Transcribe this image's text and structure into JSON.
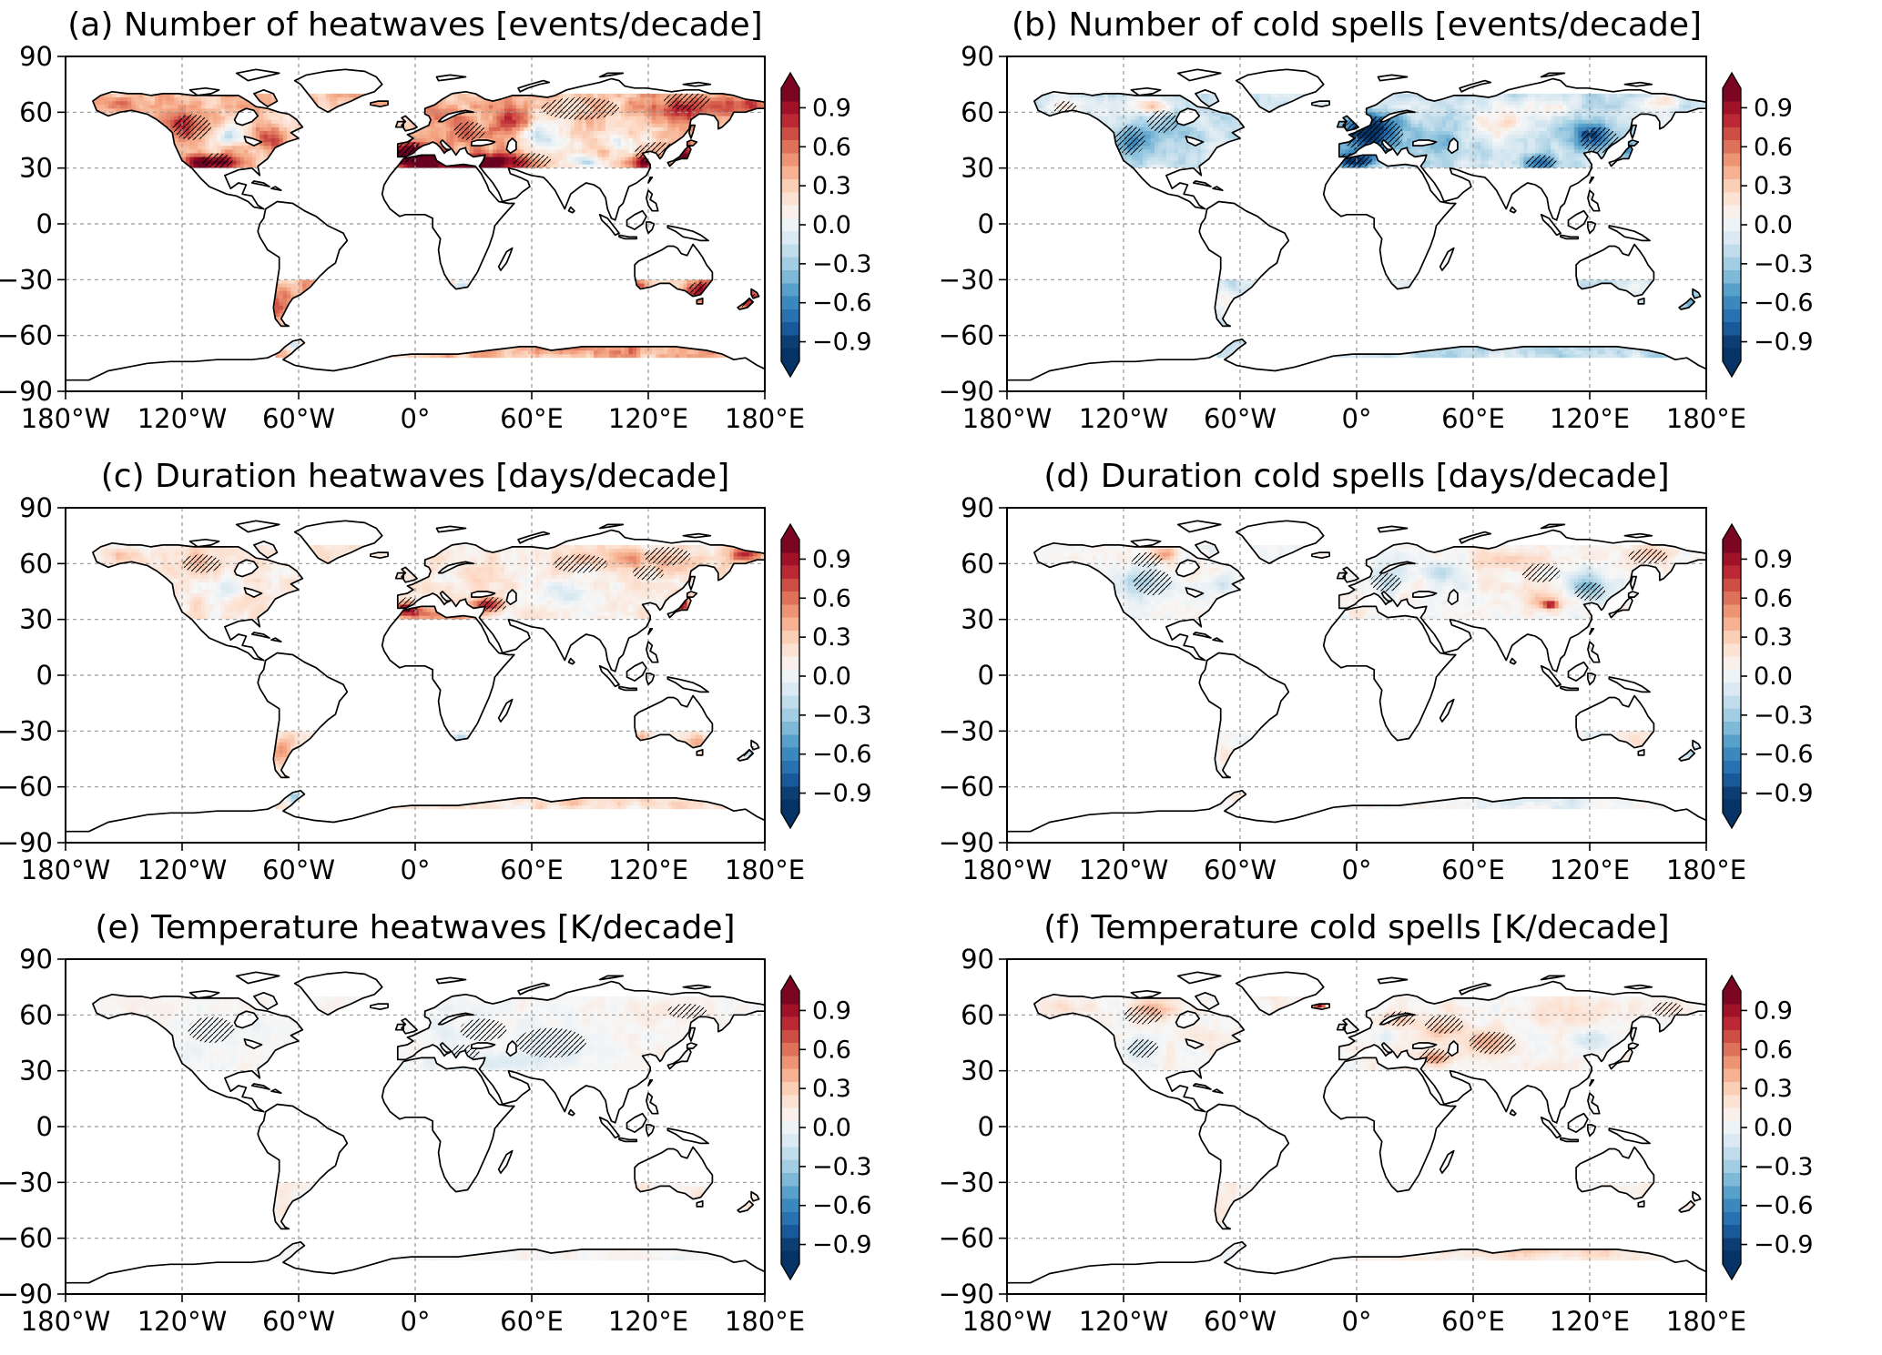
{
  "figure": {
    "background": "#ffffff",
    "panels": [
      {
        "id": "a",
        "title": "(a) Number of heatwaves [events/decade]"
      },
      {
        "id": "b",
        "title": "(b) Number of cold spells [events/decade]"
      },
      {
        "id": "c",
        "title": "(c) Duration heatwaves [days/decade]"
      },
      {
        "id": "d",
        "title": "(d) Duration cold spells [days/decade]"
      },
      {
        "id": "e",
        "title": "(e) Temperature heatwaves [K/decade]"
      },
      {
        "id": "f",
        "title": "(f) Temperature cold spells [K/decade]"
      }
    ],
    "x_tick_labels": [
      "180°W",
      "120°W",
      "60°W",
      "0°",
      "60°E",
      "120°E",
      "180°E"
    ],
    "x_tick_values": [
      -180,
      -120,
      -60,
      0,
      60,
      120,
      180
    ],
    "y_tick_labels": [
      "90",
      "60",
      "30",
      "0",
      "−30",
      "−60",
      "−90"
    ],
    "y_tick_values": [
      90,
      60,
      30,
      0,
      -30,
      -60,
      -90
    ],
    "gridline_lons": [
      -120,
      -60,
      0,
      60,
      120
    ],
    "gridline_lats": [
      60,
      30,
      0,
      -30,
      -60
    ],
    "colorbar": {
      "tick_labels": [
        "0.9",
        "0.6",
        "0.3",
        "0.0",
        "−0.3",
        "−0.6",
        "−0.9"
      ],
      "tick_values": [
        0.9,
        0.6,
        0.3,
        0.0,
        -0.3,
        -0.6,
        -0.9
      ],
      "vmin": -1.05,
      "vmax": 1.05,
      "colormap": "RdBu_r",
      "extend": "both",
      "rdbu_colors": [
        "#67001f",
        "#b2182b",
        "#d6604d",
        "#f4a582",
        "#fddbc7",
        "#f7f7f7",
        "#d1e5f0",
        "#92c5de",
        "#4393c3",
        "#2166ac",
        "#053061"
      ]
    },
    "coastline_color": "#000000",
    "gridline_color": "#999999"
  },
  "chart_data": [
    {
      "panel": "a",
      "type": "map_heatmap",
      "title": "(a) Number of heatwaves [events/decade]",
      "variable": "heatwave_frequency_trend",
      "units": "events/decade",
      "projection": "equirectangular",
      "lon_range": [
        -180,
        180
      ],
      "lat_range": [
        -90,
        90
      ],
      "grid_resolution_deg": 2,
      "coverage": "land 30N-70N plus southern South America, South Africa, southern Australia, New Zealand, coastal Antarctica",
      "colormap": "RdBu_r",
      "value_range": [
        -1.05,
        1.05
      ],
      "colorbar_ticks": [
        0.9,
        0.6,
        0.3,
        0.0,
        -0.3,
        -0.6,
        -0.9
      ],
      "base_value": 0.3,
      "noise_amplitude": 0.28,
      "regional_anomalies": [
        [
          -105,
          33,
          14,
          4,
          0.95
        ],
        [
          -118,
          52,
          10,
          8,
          0.5
        ],
        [
          -95,
          47,
          9,
          6,
          -0.45
        ],
        [
          -150,
          64,
          12,
          5,
          0.25
        ],
        [
          -75,
          45,
          8,
          6,
          0.35
        ],
        [
          -3,
          38,
          14,
          6,
          0.95
        ],
        [
          12,
          33,
          25,
          4,
          0.9
        ],
        [
          25,
          48,
          10,
          6,
          0.5
        ],
        [
          42,
          33,
          14,
          5,
          0.85
        ],
        [
          15,
          60,
          10,
          6,
          0.3
        ],
        [
          48,
          55,
          12,
          8,
          0.4
        ],
        [
          70,
          47,
          16,
          8,
          -0.5
        ],
        [
          88,
          33,
          8,
          4,
          -0.6
        ],
        [
          105,
          44,
          12,
          7,
          -0.3
        ],
        [
          118,
          33,
          10,
          4,
          0.7
        ],
        [
          135,
          62,
          20,
          7,
          0.5
        ],
        [
          170,
          64,
          10,
          5,
          0.5
        ],
        [
          138,
          37,
          5,
          6,
          0.7
        ],
        [
          -68,
          -42,
          7,
          10,
          0.35
        ],
        [
          24,
          -33,
          6,
          3,
          -0.45
        ],
        [
          146,
          -35,
          8,
          5,
          0.6
        ],
        [
          116,
          -33,
          5,
          3,
          0.35
        ],
        [
          173,
          -41,
          5,
          7,
          0.5
        ],
        [
          90,
          -67,
          60,
          4,
          0.18
        ],
        [
          -62,
          -65,
          5,
          4,
          -0.5
        ]
      ],
      "significance_hatch_zones": [
        [
          -115,
          52,
          10,
          7
        ],
        [
          -102,
          34,
          8,
          4
        ],
        [
          -5,
          39,
          10,
          6
        ],
        [
          28,
          50,
          8,
          5
        ],
        [
          85,
          62,
          20,
          6
        ],
        [
          125,
          38,
          12,
          6
        ],
        [
          140,
          66,
          12,
          5
        ],
        [
          60,
          34,
          10,
          4
        ],
        [
          147,
          -35,
          6,
          4
        ],
        [
          172,
          -42,
          4,
          6
        ]
      ]
    },
    {
      "panel": "b",
      "type": "map_heatmap",
      "title": "(b) Number of cold spells [events/decade]",
      "variable": "cold_spell_frequency_trend",
      "units": "events/decade",
      "projection": "equirectangular",
      "lon_range": [
        -180,
        180
      ],
      "lat_range": [
        -90,
        90
      ],
      "grid_resolution_deg": 2,
      "coverage": "land 30N-70N plus southern South America, South Africa, southern Australia, New Zealand, coastal Antarctica",
      "colormap": "RdBu_r",
      "value_range": [
        -1.05,
        1.05
      ],
      "colorbar_ticks": [
        0.9,
        0.6,
        0.3,
        0.0,
        -0.3,
        -0.6,
        -0.9
      ],
      "base_value": -0.2,
      "noise_amplitude": 0.22,
      "regional_anomalies": [
        [
          8,
          49,
          16,
          11,
          -0.9
        ],
        [
          -2,
          34,
          12,
          4,
          -0.85
        ],
        [
          -115,
          45,
          10,
          10,
          -0.45
        ],
        [
          -95,
          52,
          10,
          8,
          -0.25
        ],
        [
          -105,
          63,
          7,
          4,
          0.4
        ],
        [
          -150,
          63,
          10,
          5,
          0.3
        ],
        [
          75,
          55,
          15,
          8,
          0.35
        ],
        [
          100,
          62,
          15,
          6,
          0.3
        ],
        [
          122,
          48,
          12,
          8,
          -0.7
        ],
        [
          95,
          33,
          10,
          5,
          -0.5
        ],
        [
          140,
          40,
          6,
          6,
          -0.4
        ],
        [
          160,
          66,
          12,
          4,
          0.25
        ],
        [
          45,
          45,
          10,
          6,
          -0.3
        ],
        [
          -68,
          -42,
          6,
          10,
          0.2
        ],
        [
          146,
          -35,
          8,
          4,
          0.1
        ],
        [
          173,
          -41,
          4,
          6,
          -0.3
        ],
        [
          90,
          -67,
          60,
          4,
          -0.12
        ]
      ],
      "significance_hatch_zones": [
        [
          8,
          48,
          16,
          10
        ],
        [
          -2,
          34,
          10,
          4
        ],
        [
          -117,
          45,
          8,
          8
        ],
        [
          -100,
          55,
          8,
          6
        ],
        [
          125,
          45,
          10,
          7
        ],
        [
          95,
          33,
          8,
          4
        ],
        [
          -150,
          62,
          6,
          4
        ]
      ]
    },
    {
      "panel": "c",
      "type": "map_heatmap",
      "title": "(c) Duration heatwaves [days/decade]",
      "variable": "heatwave_duration_trend",
      "units": "days/decade",
      "projection": "equirectangular",
      "lon_range": [
        -180,
        180
      ],
      "lat_range": [
        -90,
        90
      ],
      "grid_resolution_deg": 2,
      "coverage": "land 30N-70N plus southern South America, South Africa, southern Australia, New Zealand, coastal Antarctica",
      "colormap": "RdBu_r",
      "value_range": [
        -1.05,
        1.05
      ],
      "colorbar_ticks": [
        0.9,
        0.6,
        0.3,
        0.0,
        -0.3,
        -0.6,
        -0.9
      ],
      "base_value": 0.1,
      "noise_amplitude": 0.2,
      "regional_anomalies": [
        [
          -5,
          36,
          7,
          4,
          0.8
        ],
        [
          38,
          38,
          8,
          4,
          0.8
        ],
        [
          137,
          38,
          4,
          6,
          0.9
        ],
        [
          12,
          33,
          20,
          4,
          0.45
        ],
        [
          120,
          62,
          35,
          6,
          0.3
        ],
        [
          75,
          45,
          18,
          8,
          -0.25
        ],
        [
          15,
          52,
          10,
          6,
          -0.1
        ],
        [
          -100,
          46,
          14,
          8,
          -0.15
        ],
        [
          -115,
          62,
          12,
          5,
          0.15
        ],
        [
          -150,
          64,
          10,
          4,
          0.1
        ],
        [
          170,
          65,
          8,
          4,
          0.65
        ],
        [
          -68,
          -42,
          6,
          10,
          0.3
        ],
        [
          24,
          -33,
          5,
          3,
          -0.45
        ],
        [
          146,
          -36,
          7,
          4,
          0.25
        ],
        [
          116,
          -33,
          4,
          3,
          0.3
        ],
        [
          173,
          -42,
          4,
          6,
          -0.45
        ],
        [
          90,
          -67,
          60,
          4,
          0.12
        ],
        [
          -62,
          -65,
          4,
          4,
          -0.5
        ]
      ],
      "significance_hatch_zones": [
        [
          85,
          60,
          14,
          5
        ],
        [
          130,
          64,
          12,
          5
        ],
        [
          -110,
          60,
          10,
          5
        ],
        [
          -3,
          38,
          6,
          4
        ],
        [
          40,
          38,
          7,
          4
        ],
        [
          172,
          -42,
          3,
          5
        ],
        [
          120,
          55,
          8,
          4
        ]
      ]
    },
    {
      "panel": "d",
      "type": "map_heatmap",
      "title": "(d) Duration cold spells [days/decade]",
      "variable": "cold_spell_duration_trend",
      "units": "days/decade",
      "projection": "equirectangular",
      "lon_range": [
        -180,
        180
      ],
      "lat_range": [
        -90,
        90
      ],
      "grid_resolution_deg": 2,
      "coverage": "land 30N-70N plus southern South America, South Africa, southern Australia, New Zealand, coastal Antarctica",
      "colormap": "RdBu_r",
      "value_range": [
        -1.05,
        1.05
      ],
      "colorbar_ticks": [
        0.9,
        0.6,
        0.3,
        0.0,
        -0.3,
        -0.6,
        -0.9
      ],
      "base_value": 0.0,
      "noise_amplitude": 0.16,
      "regional_anomalies": [
        [
          -113,
          50,
          11,
          9,
          -0.35
        ],
        [
          -100,
          65,
          8,
          4,
          0.4
        ],
        [
          -70,
          49,
          6,
          5,
          -0.25
        ],
        [
          15,
          51,
          11,
          8,
          -0.25
        ],
        [
          80,
          62,
          20,
          6,
          0.3
        ],
        [
          95,
          40,
          12,
          6,
          0.35
        ],
        [
          100,
          38,
          4,
          2,
          0.8
        ],
        [
          120,
          47,
          10,
          8,
          -0.5
        ],
        [
          152,
          65,
          14,
          5,
          0.3
        ],
        [
          10,
          34,
          20,
          3,
          0.05
        ],
        [
          45,
          55,
          10,
          6,
          -0.2
        ],
        [
          -68,
          -42,
          6,
          10,
          0.18
        ],
        [
          146,
          -36,
          7,
          4,
          0.12
        ],
        [
          173,
          -42,
          4,
          6,
          -0.3
        ],
        [
          90,
          -67,
          60,
          4,
          -0.1
        ]
      ],
      "significance_hatch_zones": [
        [
          -105,
          50,
          10,
          7
        ],
        [
          -108,
          62,
          8,
          4
        ],
        [
          15,
          50,
          8,
          5
        ],
        [
          95,
          55,
          10,
          5
        ],
        [
          150,
          64,
          10,
          4
        ],
        [
          120,
          45,
          8,
          5
        ]
      ]
    },
    {
      "panel": "e",
      "type": "map_heatmap",
      "title": "(e) Temperature heatwaves [K/decade]",
      "variable": "heatwave_intensity_trend",
      "units": "K/decade",
      "projection": "equirectangular",
      "lon_range": [
        -180,
        180
      ],
      "lat_range": [
        -90,
        90
      ],
      "grid_resolution_deg": 2,
      "coverage": "land 30N-70N plus southern South America, South Africa, southern Australia, New Zealand, coastal Antarctica",
      "colormap": "RdBu_r",
      "value_range": [
        -1.05,
        1.05
      ],
      "colorbar_ticks": [
        0.9,
        0.6,
        0.3,
        0.0,
        -0.3,
        -0.6,
        -0.9
      ],
      "base_value": 0.0,
      "noise_amplitude": 0.09,
      "regional_anomalies": [
        [
          40,
          35,
          35,
          5,
          -0.15
        ],
        [
          70,
          45,
          20,
          8,
          -0.12
        ],
        [
          15,
          50,
          14,
          8,
          -0.08
        ],
        [
          -100,
          50,
          20,
          10,
          -0.05
        ],
        [
          130,
          60,
          25,
          7,
          0.08
        ],
        [
          -150,
          64,
          10,
          5,
          0.05
        ],
        [
          -68,
          -42,
          6,
          10,
          0.12
        ],
        [
          24,
          -33,
          5,
          3,
          -0.08
        ],
        [
          146,
          -36,
          6,
          4,
          0.2
        ],
        [
          116,
          -33,
          4,
          3,
          0.15
        ],
        [
          173,
          -42,
          4,
          6,
          0.15
        ],
        [
          90,
          -67,
          60,
          4,
          0.02
        ]
      ],
      "significance_hatch_zones": [
        [
          70,
          45,
          18,
          8
        ],
        [
          35,
          52,
          12,
          6
        ],
        [
          -105,
          52,
          12,
          7
        ],
        [
          140,
          62,
          10,
          4
        ],
        [
          25,
          40,
          8,
          4
        ]
      ]
    },
    {
      "panel": "f",
      "type": "map_heatmap",
      "title": "(f) Temperature cold spells [K/decade]",
      "variable": "cold_spell_intensity_trend",
      "units": "K/decade",
      "projection": "equirectangular",
      "lon_range": [
        -180,
        180
      ],
      "lat_range": [
        -90,
        90
      ],
      "grid_resolution_deg": 2,
      "coverage": "land 30N-70N plus southern South America, South Africa, southern Australia, New Zealand, coastal Antarctica",
      "colormap": "RdBu_r",
      "value_range": [
        -1.05,
        1.05
      ],
      "colorbar_ticks": [
        0.9,
        0.6,
        0.3,
        0.0,
        -0.3,
        -0.6,
        -0.9
      ],
      "base_value": 0.03,
      "noise_amplitude": 0.13,
      "regional_anomalies": [
        [
          -105,
          63,
          12,
          5,
          0.3
        ],
        [
          -113,
          43,
          9,
          7,
          -0.2
        ],
        [
          -85,
          50,
          8,
          6,
          0.12
        ],
        [
          -150,
          64,
          10,
          4,
          0.15
        ],
        [
          -19,
          65,
          3,
          1.5,
          0.95
        ],
        [
          22,
          58,
          10,
          5,
          0.2
        ],
        [
          12,
          48,
          9,
          5,
          -0.12
        ],
        [
          45,
          52,
          12,
          7,
          0.3
        ],
        [
          40,
          37,
          8,
          4,
          0.4
        ],
        [
          68,
          45,
          14,
          7,
          0.35
        ],
        [
          110,
          60,
          20,
          8,
          0.12
        ],
        [
          122,
          45,
          9,
          7,
          -0.2
        ],
        [
          160,
          64,
          10,
          4,
          0.18
        ],
        [
          -68,
          -42,
          6,
          10,
          0.12
        ],
        [
          146,
          -36,
          7,
          4,
          0.08
        ],
        [
          173,
          -42,
          4,
          6,
          0.12
        ],
        [
          100,
          -67,
          50,
          4,
          0.18
        ]
      ],
      "significance_hatch_zones": [
        [
          70,
          45,
          12,
          6
        ],
        [
          45,
          55,
          10,
          5
        ],
        [
          -110,
          60,
          10,
          5
        ],
        [
          -110,
          42,
          8,
          5
        ],
        [
          22,
          58,
          8,
          4
        ],
        [
          40,
          38,
          8,
          4
        ],
        [
          160,
          63,
          8,
          4
        ]
      ]
    }
  ]
}
